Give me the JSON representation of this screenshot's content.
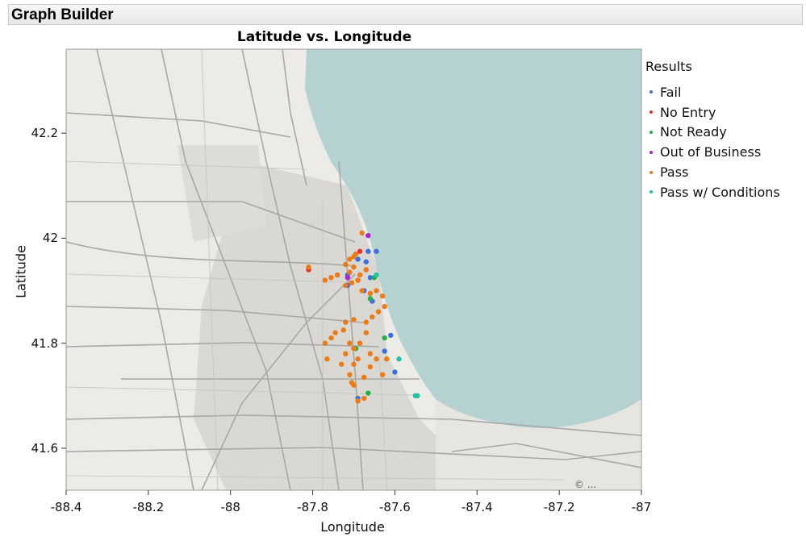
{
  "app": {
    "title": "Graph Builder"
  },
  "chart_data": {
    "type": "scatter",
    "title": "Latitude vs. Longitude",
    "xlabel": "Longitude",
    "ylabel": "Latitude",
    "xlim": [
      -88.4,
      -87.0
    ],
    "ylim": [
      41.52,
      42.36
    ],
    "xticks": [
      "-88.4",
      "-88.2",
      "-88",
      "-87.8",
      "-87.6",
      "-87.4",
      "-87.2",
      "-87"
    ],
    "xtick_values": [
      -88.4,
      -88.2,
      -88.0,
      -87.8,
      -87.6,
      -87.4,
      -87.2,
      -87.0
    ],
    "yticks": [
      "41.6",
      "41.8",
      "42",
      "42.2"
    ],
    "ytick_values": [
      41.6,
      41.8,
      42.0,
      42.2
    ],
    "background": "street map (Chicago area)",
    "legend": {
      "title": "Results",
      "position": "right"
    },
    "series": [
      {
        "name": "Fail",
        "color": "#3a6fe6",
        "x": [
          -87.69,
          -87.67,
          -87.645,
          -87.66,
          -87.715,
          -87.675,
          -87.625,
          -87.61,
          -87.6,
          -87.655,
          -87.69,
          -87.665,
          -87.715
        ],
        "y": [
          41.96,
          41.955,
          41.975,
          41.925,
          41.91,
          41.9,
          41.785,
          41.815,
          41.745,
          41.88,
          41.695,
          41.975,
          41.93
        ]
      },
      {
        "name": "No Entry",
        "color": "#e8322c",
        "x": [
          -87.81,
          -87.685,
          -87.69
        ],
        "y": [
          41.94,
          41.975,
          41.92
        ]
      },
      {
        "name": "Not Ready",
        "color": "#23b04a",
        "x": [
          -87.74,
          -87.65,
          -87.66,
          -87.625,
          -87.665,
          -87.695
        ],
        "y": [
          41.93,
          41.925,
          41.885,
          41.81,
          41.705,
          41.79
        ]
      },
      {
        "name": "Out of Business",
        "color": "#b21fd4",
        "x": [
          -87.665,
          -87.715
        ],
        "y": [
          42.005,
          41.925
        ]
      },
      {
        "name": "Pass",
        "color": "#ee7a13",
        "x": [
          -87.68,
          -87.695,
          -87.7,
          -87.71,
          -87.72,
          -87.7,
          -87.67,
          -87.685,
          -87.69,
          -87.705,
          -87.72,
          -87.71,
          -87.74,
          -87.755,
          -87.77,
          -87.81,
          -87.68,
          -87.66,
          -87.645,
          -87.63,
          -87.625,
          -87.64,
          -87.655,
          -87.67,
          -87.7,
          -87.72,
          -87.725,
          -87.745,
          -87.755,
          -87.77,
          -87.67,
          -87.685,
          -87.71,
          -87.7,
          -87.72,
          -87.66,
          -87.645,
          -87.62,
          -87.63,
          -87.69,
          -87.7,
          -87.73,
          -87.765,
          -87.675,
          -87.71,
          -87.705,
          -87.7,
          -87.675,
          -87.69,
          -87.66
        ],
        "y": [
          42.01,
          41.97,
          41.965,
          41.96,
          41.95,
          41.945,
          41.94,
          41.93,
          41.92,
          41.915,
          41.91,
          41.935,
          41.93,
          41.925,
          41.92,
          41.945,
          41.9,
          41.895,
          41.9,
          41.89,
          41.87,
          41.86,
          41.85,
          41.84,
          41.845,
          41.84,
          41.825,
          41.82,
          41.81,
          41.8,
          41.82,
          41.8,
          41.8,
          41.79,
          41.78,
          41.78,
          41.77,
          41.77,
          41.74,
          41.77,
          41.76,
          41.76,
          41.77,
          41.735,
          41.74,
          41.725,
          41.72,
          41.695,
          41.69,
          41.755
        ]
      },
      {
        "name": "Pass w/ Conditions",
        "color": "#1fc6a6",
        "x": [
          -87.645,
          -87.59,
          -87.55,
          -87.545
        ],
        "y": [
          41.93,
          41.77,
          41.7,
          41.7
        ]
      }
    ]
  },
  "map": {
    "attribution": "© ..."
  }
}
